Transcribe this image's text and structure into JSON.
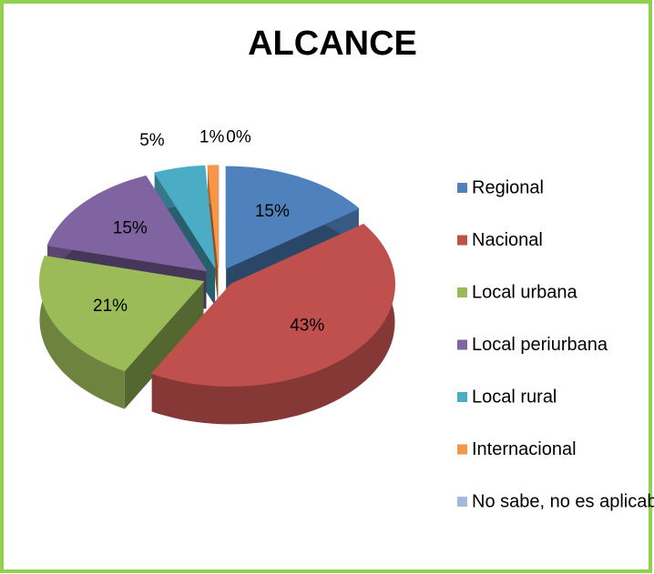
{
  "chart_data": {
    "type": "pie",
    "title": "ALCANCE",
    "categories": [
      "Regional",
      "Nacional",
      "Local urbana",
      "Local periurbana",
      "Local rural",
      "Internacional",
      "No sabe, no es aplicable"
    ],
    "values": [
      15,
      43,
      21,
      15,
      5,
      1,
      0
    ],
    "value_labels": [
      "15%",
      "43%",
      "21%",
      "15%",
      "5%",
      "1%",
      "0%"
    ],
    "colors": [
      "#4f81bd",
      "#c0504d",
      "#9bbb59",
      "#8064a2",
      "#4bacc6",
      "#f79646",
      "#a5b9dc"
    ],
    "legend": "right"
  }
}
